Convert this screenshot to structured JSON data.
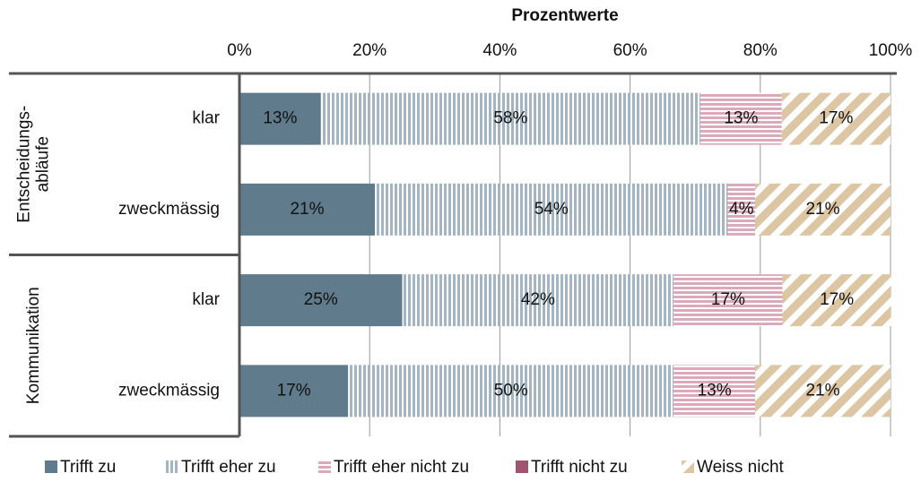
{
  "chart_data": {
    "type": "stacked-barh",
    "xlabel": "Prozentwerte",
    "groups": [
      [
        "Entscheidungs-",
        "abläufe"
      ],
      [
        "Kommunikation"
      ]
    ],
    "categories": [
      "klar",
      "zweckmässig",
      "klar",
      "zweckmässig"
    ],
    "series": [
      {
        "name": "Trifft zu",
        "color": "#5f7b8c",
        "pattern": "solid",
        "label_color": "#ffffff",
        "values": [
          12.5,
          20.8,
          25,
          16.7
        ],
        "value_labels": [
          "13%",
          "21%",
          "25%",
          "17%"
        ]
      },
      {
        "name": "Trifft eher zu",
        "color": "#a3b5c3",
        "pattern": "vertical",
        "label_color": "#222222",
        "values": [
          58.3,
          54.2,
          41.7,
          50
        ],
        "value_labels": [
          "58%",
          "54%",
          "42%",
          "50%"
        ]
      },
      {
        "name": "Trifft eher nicht zu",
        "color": "#dba9b9",
        "pattern": "horizontal",
        "label_color": "#222222",
        "values": [
          12.5,
          4.2,
          16.7,
          12.5
        ],
        "value_labels": [
          "13%",
          "4%",
          "17%",
          "13%"
        ]
      },
      {
        "name": "Trifft nicht zu",
        "color": "#a35370",
        "pattern": "solid",
        "label_color": "#ffffff",
        "values": [
          0,
          0,
          0,
          0
        ],
        "value_labels": [
          null,
          null,
          null,
          null
        ]
      },
      {
        "name": "Weiss nicht",
        "color": "#dcc6a4",
        "pattern": "diagonal",
        "label_color": "#222222",
        "values": [
          16.7,
          20.8,
          16.7,
          20.8
        ],
        "value_labels": [
          "17%",
          "21%",
          "17%",
          "21%"
        ]
      }
    ],
    "xlim": [
      0,
      100
    ],
    "xticks": [
      {
        "value": 0,
        "label": "0%"
      },
      {
        "value": 20,
        "label": "20%"
      },
      {
        "value": 40,
        "label": "40%"
      },
      {
        "value": 60,
        "label": "60%"
      },
      {
        "value": 80,
        "label": "80%"
      },
      {
        "value": 100,
        "label": "100%"
      }
    ],
    "grid": true
  }
}
